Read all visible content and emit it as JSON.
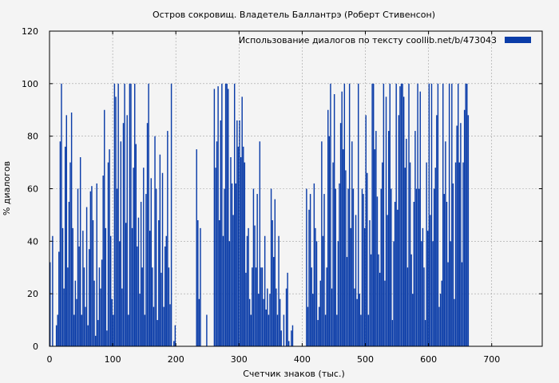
{
  "chart_data": {
    "type": "bar",
    "title": "Остров сокровищ. Владетель Баллантрэ (Роберт Стивенсон)",
    "xlabel": "Счетчик знаков (тыс.)",
    "ylabel": "% диалогов",
    "xlim": [
      0,
      780
    ],
    "ylim": [
      0,
      120
    ],
    "xticks": [
      0,
      100,
      200,
      300,
      400,
      500,
      600,
      700
    ],
    "yticks": [
      0,
      20,
      40,
      60,
      80,
      100,
      120
    ],
    "grid": true,
    "legend_position": "top-right",
    "series": [
      {
        "name": "Использование диалогов по тексту  coollib.net/b/473043",
        "color": "#0a3ca8",
        "x_start": 0,
        "x_step": 2,
        "values": [
          32,
          0,
          42,
          0,
          0,
          8,
          12,
          36,
          78,
          100,
          45,
          22,
          76,
          88,
          30,
          55,
          70,
          89,
          45,
          12,
          25,
          18,
          60,
          38,
          72,
          12,
          44,
          30,
          15,
          53,
          8,
          37,
          59,
          61,
          48,
          25,
          4,
          62,
          10,
          30,
          22,
          33,
          65,
          90,
          45,
          6,
          70,
          75,
          42,
          18,
          12,
          100,
          95,
          60,
          100,
          40,
          78,
          22,
          85,
          100,
          47,
          88,
          12,
          100,
          100,
          45,
          68,
          100,
          77,
          38,
          49,
          20,
          55,
          30,
          68,
          12,
          58,
          85,
          100,
          44,
          64,
          30,
          15,
          80,
          60,
          10,
          48,
          73,
          28,
          66,
          15,
          38,
          42,
          82,
          30,
          16,
          100,
          0,
          2,
          8,
          0,
          0,
          0,
          0,
          0,
          0,
          0,
          0,
          0,
          0,
          0,
          0,
          0,
          0,
          0,
          0,
          75,
          48,
          18,
          45,
          0,
          0,
          0,
          0,
          12,
          0,
          0,
          0,
          0,
          0,
          98,
          68,
          78,
          99,
          48,
          86,
          100,
          42,
          60,
          100,
          100,
          98,
          40,
          72,
          62,
          50,
          100,
          62,
          86,
          76,
          86,
          72,
          95,
          76,
          70,
          28,
          42,
          45,
          18,
          12,
          30,
          60,
          46,
          30,
          58,
          20,
          78,
          30,
          30,
          18,
          42,
          14,
          22,
          12,
          20,
          60,
          48,
          34,
          56,
          22,
          12,
          42,
          18,
          6,
          0,
          12,
          0,
          22,
          28,
          2,
          0,
          6,
          8,
          0,
          0,
          0,
          0,
          0,
          0,
          0,
          0,
          0,
          0,
          60,
          15,
          52,
          58,
          30,
          20,
          62,
          45,
          40,
          10,
          15,
          25,
          78,
          42,
          58,
          12,
          30,
          90,
          80,
          100,
          22,
          70,
          96,
          60,
          12,
          40,
          62,
          85,
          97,
          75,
          100,
          67,
          34,
          60,
          100,
          45,
          78,
          60,
          22,
          50,
          18,
          100,
          20,
          12,
          60,
          58,
          45,
          88,
          66,
          12,
          48,
          35,
          100,
          100,
          75,
          82,
          57,
          35,
          28,
          60,
          70,
          100,
          25,
          95,
          50,
          82,
          100,
          60,
          10,
          40,
          55,
          100,
          52,
          88,
          99,
          100,
          100,
          95,
          68,
          79,
          30,
          100,
          70,
          35,
          20,
          55,
          82,
          60,
          100,
          60,
          97,
          40,
          45,
          30,
          10,
          70,
          44,
          100,
          50,
          100,
          40,
          60,
          68,
          88,
          100,
          15,
          20,
          25,
          100,
          58,
          78,
          55,
          32,
          100,
          40,
          100,
          62,
          18,
          70,
          84,
          100,
          70,
          85,
          32,
          70,
          90,
          100,
          100,
          88
        ]
      }
    ]
  }
}
